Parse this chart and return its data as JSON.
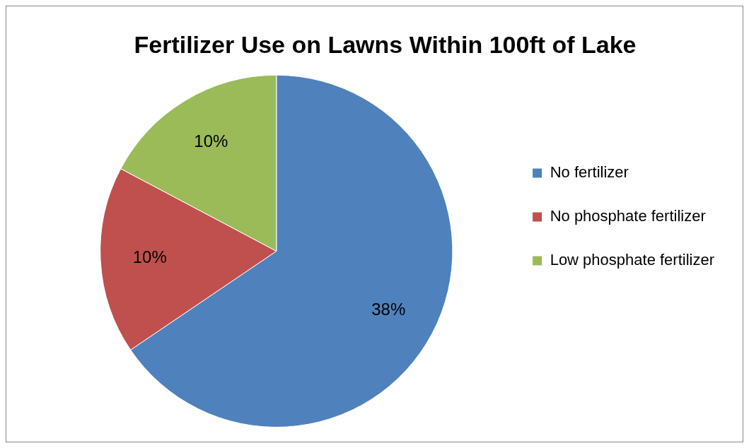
{
  "chart_data": {
    "type": "pie",
    "title": "Fertilizer Use on Lawns Within 100ft of Lake",
    "categories": [
      "No fertilizer",
      "No phosphate fertilizer",
      "Low phosphate fertilizer"
    ],
    "values": [
      38,
      10,
      10
    ],
    "value_labels": [
      "38%",
      "10%",
      "10%"
    ],
    "colors": [
      "#4f81bd",
      "#c0504d",
      "#9bbb59"
    ],
    "legend": "right"
  }
}
